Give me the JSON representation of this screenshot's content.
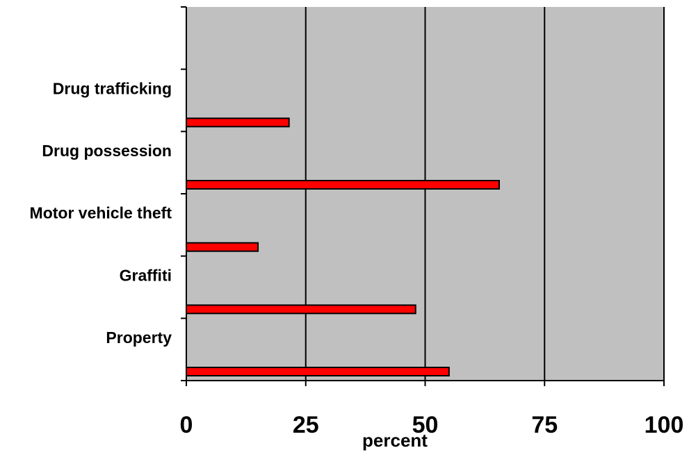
{
  "chart_data": {
    "type": "bar",
    "orientation": "horizontal",
    "title": "",
    "xlabel": "percent",
    "ylabel": "",
    "categories": [
      "Drug trafficking",
      "Drug possession",
      "Motor vehicle theft",
      "Graffiti",
      "Property"
    ],
    "values": [
      21.5,
      65.5,
      15,
      48,
      55
    ],
    "xlim": [
      0,
      100
    ],
    "xticks": [
      "0",
      "25",
      "50",
      "75",
      "100"
    ],
    "grid": "vertical",
    "legend": "none",
    "colors": {
      "bar": "#ff0000",
      "bar_stroke": "#000000",
      "plot_background": "#c0c0c0",
      "grid": "#000000"
    }
  }
}
